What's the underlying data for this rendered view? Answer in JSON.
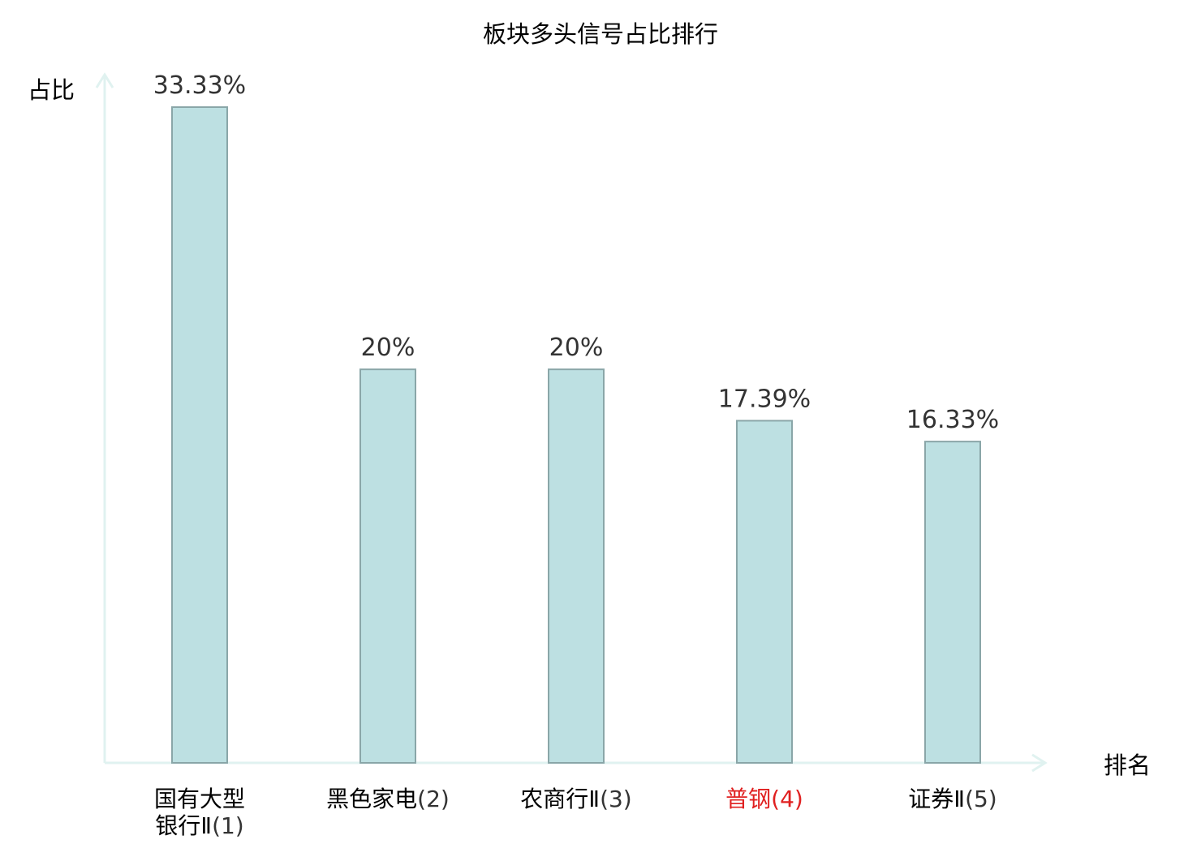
{
  "chart_data": {
    "type": "bar",
    "title": "板块多头信号占比排行",
    "ylabel": "占比",
    "xlabel": "排名",
    "ylim": [
      0,
      35
    ],
    "grid": false,
    "categories": [
      {
        "name_lines": [
          "国有大型",
          "银行Ⅱ"
        ],
        "rank": "(1)",
        "highlight": false
      },
      {
        "name_lines": [
          "黑色家电"
        ],
        "rank": "(2)",
        "highlight": false
      },
      {
        "name_lines": [
          "农商行Ⅱ"
        ],
        "rank": "(3)",
        "highlight": false
      },
      {
        "name_lines": [
          "普钢"
        ],
        "rank": "(4)",
        "highlight": true
      },
      {
        "name_lines": [
          "证券Ⅱ"
        ],
        "rank": "(5)",
        "highlight": false
      }
    ],
    "values": [
      33.33,
      20,
      20,
      17.39,
      16.33
    ],
    "value_labels": [
      "33.33%",
      "20%",
      "20%",
      "17.39%",
      "16.33%"
    ]
  },
  "colors": {
    "bar_fill": "#bde0e2",
    "bar_stroke": "#8aa6a8",
    "axis": "#e0f2f0",
    "highlight_text": "#e02020",
    "normal_text": "#000000",
    "rank_text": "#333333"
  }
}
